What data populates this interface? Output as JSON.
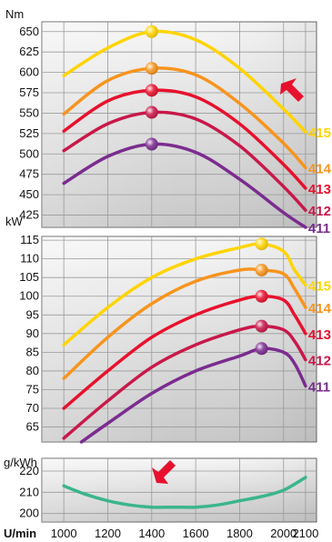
{
  "chart_data": [
    {
      "type": "line",
      "unit_label": "Nm",
      "y_ticks": [
        425,
        450,
        475,
        500,
        525,
        550,
        575,
        600,
        625,
        650
      ],
      "ylim": [
        410,
        662
      ],
      "series": [
        {
          "name": "415",
          "color": "#ffd400",
          "points": [
            [
              1000,
              596
            ],
            [
              1200,
              630
            ],
            [
              1400,
              650
            ],
            [
              1600,
              640
            ],
            [
              1800,
              605
            ],
            [
              2000,
              555
            ],
            [
              2100,
              527
            ]
          ],
          "peak": [
            1400,
            650
          ]
        },
        {
          "name": "414",
          "color": "#f7941d",
          "points": [
            [
              1000,
              549
            ],
            [
              1200,
              590
            ],
            [
              1400,
              605
            ],
            [
              1600,
              597
            ],
            [
              1800,
              562
            ],
            [
              2000,
              513
            ],
            [
              2100,
              483
            ]
          ],
          "peak": [
            1400,
            605
          ]
        },
        {
          "name": "413",
          "color": "#e8112d",
          "points": [
            [
              1000,
              528
            ],
            [
              1200,
              565
            ],
            [
              1400,
              578
            ],
            [
              1600,
              570
            ],
            [
              1800,
              537
            ],
            [
              2000,
              487
            ],
            [
              2100,
              458
            ]
          ],
          "peak": [
            1400,
            578
          ]
        },
        {
          "name": "412",
          "color": "#c8184a",
          "points": [
            [
              1000,
              504
            ],
            [
              1200,
              537
            ],
            [
              1400,
              551
            ],
            [
              1600,
              543
            ],
            [
              1800,
              510
            ],
            [
              2000,
              460
            ],
            [
              2100,
              431
            ]
          ],
          "peak": [
            1400,
            551
          ]
        },
        {
          "name": "411",
          "color": "#7b2c8f",
          "points": [
            [
              1000,
              464
            ],
            [
              1200,
              497
            ],
            [
              1400,
              512
            ],
            [
              1600,
              502
            ],
            [
              1800,
              469
            ],
            [
              2000,
              428
            ],
            [
              2100,
              409
            ]
          ],
          "peak": [
            1400,
            512
          ]
        }
      ]
    },
    {
      "type": "line",
      "unit_label": "kW",
      "y_ticks": [
        65,
        70,
        75,
        80,
        85,
        90,
        95,
        100,
        105,
        110,
        115
      ],
      "ylim": [
        61,
        116
      ],
      "series": [
        {
          "name": "415",
          "color": "#ffd400",
          "points": [
            [
              1000,
              87
            ],
            [
              1200,
              97
            ],
            [
              1400,
              105
            ],
            [
              1600,
              110
            ],
            [
              1800,
              113
            ],
            [
              1900,
              114
            ],
            [
              2000,
              112
            ],
            [
              2050,
              107
            ],
            [
              2100,
              103
            ]
          ],
          "peak": [
            1900,
            114
          ]
        },
        {
          "name": "414",
          "color": "#f7941d",
          "points": [
            [
              1000,
              78
            ],
            [
              1200,
              89
            ],
            [
              1400,
              98
            ],
            [
              1600,
              104
            ],
            [
              1800,
              107
            ],
            [
              1900,
              107
            ],
            [
              2000,
              106
            ],
            [
              2050,
              102
            ],
            [
              2100,
              97
            ]
          ],
          "peak": [
            1900,
            107
          ]
        },
        {
          "name": "413",
          "color": "#e8112d",
          "points": [
            [
              1000,
              70
            ],
            [
              1200,
              80
            ],
            [
              1400,
              89
            ],
            [
              1600,
              95
            ],
            [
              1800,
              99
            ],
            [
              1900,
              100
            ],
            [
              2000,
              99
            ],
            [
              2050,
              95
            ],
            [
              2100,
              90
            ]
          ],
          "peak": [
            1900,
            100
          ]
        },
        {
          "name": "412",
          "color": "#c8184a",
          "points": [
            [
              1000,
              62
            ],
            [
              1200,
              72
            ],
            [
              1400,
              81
            ],
            [
              1600,
              87
            ],
            [
              1800,
              91
            ],
            [
              1900,
              92
            ],
            [
              2000,
              91
            ],
            [
              2050,
              88
            ],
            [
              2100,
              83
            ]
          ],
          "peak": [
            1900,
            92
          ]
        },
        {
          "name": "411",
          "color": "#7b2c8f",
          "points": [
            [
              1080,
              60
            ],
            [
              1200,
              66
            ],
            [
              1400,
              74
            ],
            [
              1600,
              80
            ],
            [
              1800,
              84
            ],
            [
              1900,
              86
            ],
            [
              2000,
              85
            ],
            [
              2050,
              82
            ],
            [
              2100,
              76
            ]
          ],
          "peak": [
            1900,
            86
          ]
        }
      ]
    },
    {
      "type": "line",
      "unit_label": "g/kWh",
      "y_ticks": [
        200,
        210,
        220
      ],
      "ylim": [
        196,
        226
      ],
      "series": [
        {
          "color": "#3bb58c",
          "points": [
            [
              1000,
              213
            ],
            [
              1100,
              209
            ],
            [
              1200,
              206
            ],
            [
              1300,
              204
            ],
            [
              1400,
              203
            ],
            [
              1500,
              203
            ],
            [
              1600,
              203
            ],
            [
              1700,
              204
            ],
            [
              1800,
              206
            ],
            [
              1900,
              208
            ],
            [
              2000,
              211
            ],
            [
              2100,
              217
            ]
          ]
        }
      ]
    }
  ],
  "x_axis": {
    "label": "U/min",
    "ticks": [
      1000,
      1200,
      1400,
      1600,
      1800,
      2000,
      2100
    ]
  },
  "arrow_colors": {
    "arrow": "#e8112d"
  }
}
